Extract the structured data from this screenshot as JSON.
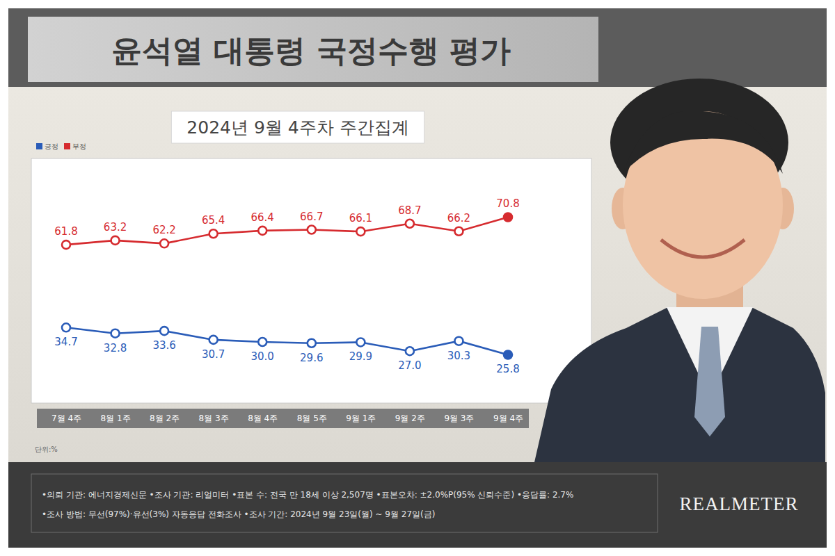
{
  "chart_data": {
    "type": "line",
    "title": "윤석열 대통령 국정수행 평가",
    "subtitle": "2024년 9월 4주차 주간집계",
    "categories": [
      "7월 4주",
      "8월 1주",
      "8월 2주",
      "8월 3주",
      "8월 4주",
      "8월 5주",
      "9월 1주",
      "9월 2주",
      "9월 3주",
      "9월 4주"
    ],
    "series": [
      {
        "name": "긍정",
        "color": "#2a5cb8",
        "values": [
          34.7,
          32.8,
          33.6,
          30.7,
          30.0,
          29.6,
          29.9,
          27.0,
          30.3,
          25.8
        ],
        "value_labels": [
          "34.7",
          "32.8",
          "33.6",
          "30.7",
          "30.0",
          "29.6",
          "29.9",
          "27.0",
          "30.3",
          "25.8"
        ]
      },
      {
        "name": "부정",
        "color": "#d62b2f",
        "values": [
          61.8,
          63.2,
          62.2,
          65.4,
          66.4,
          66.7,
          66.1,
          68.7,
          66.2,
          70.8
        ]
      }
    ],
    "ylim": [
      10,
      90
    ],
    "tick_labels": "x",
    "grid": false,
    "legend": "upper left",
    "data_labels": true,
    "marker": "circle",
    "annotations": [
      "단위:%"
    ]
  },
  "footer": [
    "•의뢰 기관: 에너지경제신문 •조사 기관: 리얼미터 •표본 수: 전국 만 18세 이상 2,507명 •표본오차: ±2.0%P(95% 신뢰수준) •응답률: 2.7%",
    "•조사 방법: 무선(97%)·유선(3%) 자동응답 전화조사 •조사 기간: 2024년 9월 23일(월) ~ 9월 27일(금)"
  ],
  "logo": "REALMETER"
}
